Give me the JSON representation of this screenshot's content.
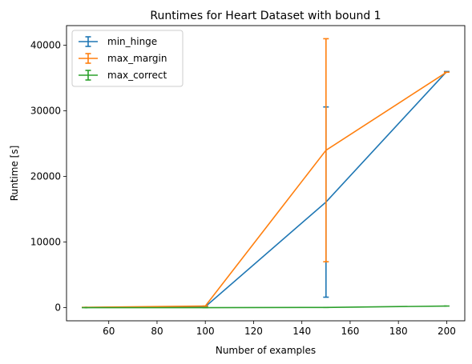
{
  "chart_data": {
    "type": "line",
    "title": "Runtimes for Heart Dataset with bound 1",
    "xlabel": "Number of examples",
    "ylabel": "Runtime [s]",
    "xlim": [
      42.5,
      207.5
    ],
    "ylim": [
      -2000,
      43000
    ],
    "xticks": [
      60,
      80,
      100,
      120,
      140,
      160,
      180,
      200
    ],
    "yticks": [
      0,
      10000,
      20000,
      30000,
      40000
    ],
    "x": [
      50,
      100,
      150,
      200
    ],
    "series": [
      {
        "name": "min_hinge",
        "color": "#1f77b4",
        "values": [
          40,
          150,
          16100,
          36000
        ],
        "errors": [
          0,
          0,
          14500,
          0
        ]
      },
      {
        "name": "max_margin",
        "color": "#ff7f0e",
        "values": [
          50,
          250,
          24000,
          35900
        ],
        "errors": [
          0,
          0,
          17000,
          0
        ]
      },
      {
        "name": "max_correct",
        "color": "#2ca02c",
        "values": [
          5,
          10,
          40,
          250
        ],
        "errors": [
          0,
          0,
          0,
          0
        ]
      }
    ],
    "legend": "top-left",
    "grid": false
  }
}
